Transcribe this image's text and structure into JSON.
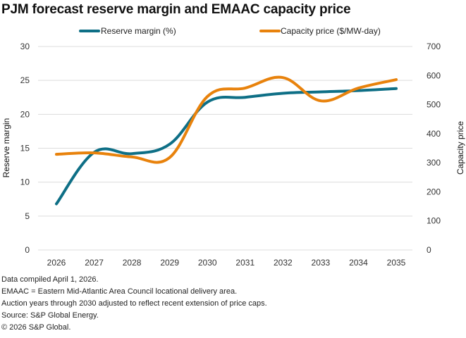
{
  "chart_data": {
    "type": "line",
    "title": "PJM forecast reserve margin and EMAAC capacity price",
    "x": [
      "2026",
      "2027",
      "2028",
      "2029",
      "2030",
      "2031",
      "2032",
      "2033",
      "2034",
      "2035"
    ],
    "series": [
      {
        "name": "Reserve margin (%)",
        "axis": "left",
        "color": "#0e6f86",
        "values": [
          6.8,
          14.4,
          14.2,
          15.6,
          21.8,
          22.5,
          23.1,
          23.3,
          23.5,
          23.8
        ]
      },
      {
        "name": "Capacity price ($/MW-day)",
        "axis": "right",
        "color": "#e8820c",
        "values": [
          329,
          334,
          320,
          318,
          528,
          557,
          593,
          513,
          557,
          586
        ]
      }
    ],
    "ylabel": "Reserve margin",
    "ylabel_right": "Capacity price",
    "xlabel": "",
    "ylim": [
      0,
      30
    ],
    "ylim_right": [
      0,
      700
    ],
    "yticks": [
      "0",
      "5",
      "10",
      "15",
      "20",
      "25",
      "30"
    ],
    "yticks_right": [
      "0",
      "100",
      "200",
      "300",
      "400",
      "500",
      "600",
      "700"
    ],
    "grid": true,
    "legend_position": "top-center"
  },
  "notes": [
    "Data compiled April 1, 2026.",
    "EMAAC = Eastern Mid-Atlantic Area Council locational delivery area.",
    "Auction years through 2030 adjusted to reflect recent extension of price caps.",
    "Source: S&P Global Energy.",
    "© 2026 S&P Global."
  ]
}
